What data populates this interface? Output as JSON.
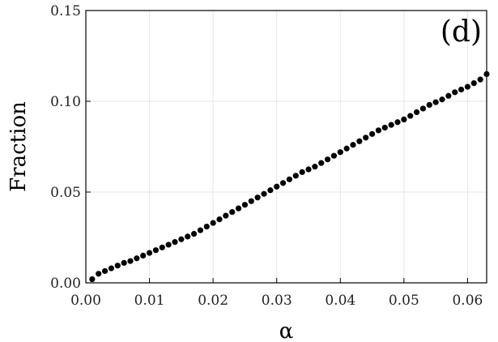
{
  "chart_data": {
    "type": "scatter",
    "panel_label": "(d)",
    "title": "",
    "xlabel": "α",
    "ylabel": "Fraction",
    "xlim": [
      0.0,
      0.063
    ],
    "ylim": [
      0.0,
      0.15
    ],
    "x_ticks": [
      "0.00",
      "0.01",
      "0.02",
      "0.03",
      "0.04",
      "0.05",
      "0.06"
    ],
    "y_ticks": [
      "0.00",
      "0.05",
      "0.10",
      "0.15"
    ],
    "grid": true,
    "legend": "none",
    "colors": {
      "marker": "#000000",
      "grid": "#e6e6e6",
      "axis": "#000000"
    },
    "series": [
      {
        "x": [
          0.001,
          0.002,
          0.003,
          0.004,
          0.005,
          0.006,
          0.007,
          0.008,
          0.009,
          0.01,
          0.011,
          0.012,
          0.013,
          0.014,
          0.015,
          0.016,
          0.017,
          0.018,
          0.019,
          0.02,
          0.021,
          0.022,
          0.023,
          0.024,
          0.025,
          0.026,
          0.027,
          0.028,
          0.029,
          0.03,
          0.031,
          0.032,
          0.033,
          0.034,
          0.035,
          0.036,
          0.037,
          0.038,
          0.039,
          0.04,
          0.041,
          0.042,
          0.043,
          0.044,
          0.045,
          0.046,
          0.047,
          0.048,
          0.049,
          0.05,
          0.051,
          0.052,
          0.053,
          0.054,
          0.055,
          0.056,
          0.057,
          0.058,
          0.059,
          0.06,
          0.061,
          0.062,
          0.063
        ],
        "values": [
          0.002,
          0.005,
          0.0065,
          0.008,
          0.0095,
          0.011,
          0.012,
          0.0135,
          0.015,
          0.0165,
          0.018,
          0.0195,
          0.021,
          0.0225,
          0.024,
          0.0255,
          0.027,
          0.029,
          0.031,
          0.033,
          0.035,
          0.037,
          0.039,
          0.041,
          0.043,
          0.045,
          0.047,
          0.049,
          0.051,
          0.053,
          0.055,
          0.057,
          0.059,
          0.061,
          0.0625,
          0.064,
          0.066,
          0.068,
          0.07,
          0.072,
          0.074,
          0.076,
          0.078,
          0.08,
          0.082,
          0.084,
          0.0855,
          0.087,
          0.0885,
          0.09,
          0.092,
          0.094,
          0.096,
          0.098,
          0.0995,
          0.101,
          0.103,
          0.105,
          0.1065,
          0.108,
          0.11,
          0.112,
          0.115
        ]
      }
    ]
  }
}
